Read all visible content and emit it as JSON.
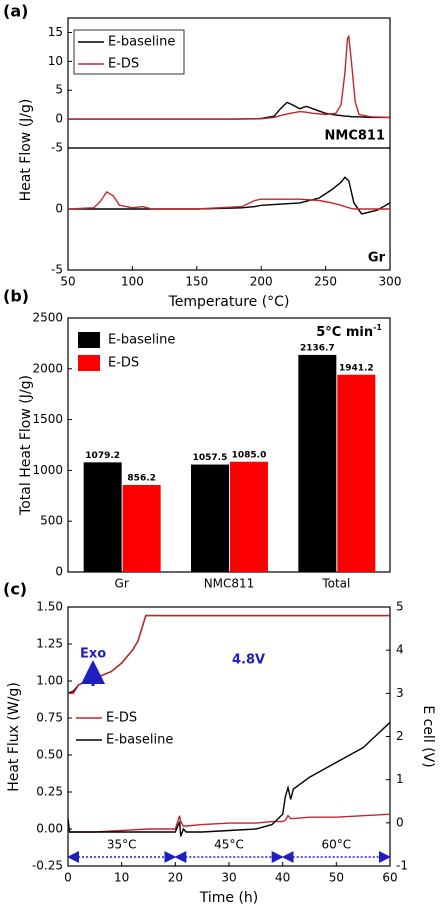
{
  "chart_data": [
    {
      "type": "line",
      "panel_label": "(a)",
      "ylabel": "Heat Flow (J/g)",
      "ylim": [
        -5,
        17.5
      ],
      "yticks": [
        -5,
        0,
        5,
        10,
        15
      ],
      "legend": "upper left",
      "annotations": [
        "NMC811"
      ],
      "x": [
        50,
        80,
        120,
        180,
        200,
        210,
        215,
        220,
        225,
        230,
        235,
        240,
        250,
        258,
        262,
        265,
        267,
        268,
        270,
        273,
        276,
        285,
        300
      ],
      "xlim": [
        50,
        300
      ],
      "series": [
        {
          "name": "E-baseline",
          "color": "#000000",
          "values": [
            0,
            0,
            0,
            0,
            0.1,
            0.5,
            1.8,
            2.9,
            2.4,
            1.8,
            2.2,
            1.8,
            1.0,
            0.7,
            0.6,
            0.5,
            0.5,
            0.5,
            0.4,
            0.4,
            0.4,
            0.3,
            0.3
          ]
        },
        {
          "name": "E-DS",
          "color": "#c0272d",
          "values": [
            0,
            0,
            0,
            0,
            0.05,
            0.3,
            0.6,
            0.9,
            1.1,
            1.3,
            1.2,
            1.0,
            0.8,
            1.0,
            2.5,
            8,
            14,
            14.3,
            10,
            3,
            0.8,
            0.4,
            0.3
          ]
        }
      ]
    },
    {
      "type": "line",
      "xlabel": "Temperature (°C)",
      "ylim": [
        -5,
        5
      ],
      "yticks": [
        -5,
        0
      ],
      "xlim": [
        50,
        300
      ],
      "xticks": [
        50,
        100,
        150,
        200,
        250,
        300
      ],
      "annotations": [
        "Gr"
      ],
      "x": [
        50,
        70,
        75,
        80,
        85,
        90,
        100,
        108,
        115,
        150,
        185,
        195,
        200,
        230,
        245,
        255,
        262,
        265,
        268,
        272,
        278,
        290,
        300
      ],
      "series": [
        {
          "color": "#000000",
          "values": [
            0,
            0,
            0,
            0,
            0,
            0,
            0,
            0,
            0,
            0,
            0.1,
            0.2,
            0.3,
            0.5,
            0.9,
            1.6,
            2.2,
            2.6,
            2.3,
            0.5,
            -0.4,
            -0.1,
            0.5
          ]
        },
        {
          "color": "#c0272d",
          "values": [
            0,
            0.1,
            0.6,
            1.4,
            1.1,
            0.3,
            0.1,
            0.2,
            0,
            0,
            0.2,
            0.7,
            0.8,
            0.8,
            0.7,
            0.5,
            0.3,
            0.2,
            0.1,
            0,
            0,
            0,
            0
          ]
        }
      ]
    },
    {
      "type": "bar",
      "panel_label": "(b)",
      "ylabel": "Total Heat Flow (J/g)",
      "ylim": [
        0,
        2500
      ],
      "yticks": [
        0,
        500,
        1000,
        1500,
        2000,
        2500
      ],
      "legend": "upper left",
      "annotations": [
        {
          "text": "5°C min",
          "superscript": "-1"
        }
      ],
      "categories": [
        "Gr",
        "NMC811",
        "Total"
      ],
      "series": [
        {
          "name": "E-baseline",
          "color": "#000000",
          "values": [
            1079.2,
            1057.5,
            2136.7
          ]
        },
        {
          "name": "E-DS",
          "color": "#ff0000",
          "values": [
            856.2,
            1085.0,
            1941.2
          ],
          "value_labels": [
            "856.2",
            "1085.0",
            "1941.2"
          ]
        }
      ]
    },
    {
      "type": "line",
      "panel_label": "(c)",
      "ylabel": "Heat Flux (W/g)",
      "y2label": "E cell (V)",
      "xlabel": "Time (h)",
      "xlim": [
        0,
        60
      ],
      "xticks": [
        0,
        10,
        20,
        30,
        40,
        50,
        60
      ],
      "ylim": [
        -0.25,
        1.5
      ],
      "yticks": [
        -0.25,
        {
          "value": 0,
          "label": "0.00"
        },
        0.25,
        {
          "value": 0.5,
          "label": "0.50"
        },
        0.75,
        {
          "value": 1,
          "label": "1.00"
        },
        1.25,
        {
          "value": 1.5,
          "label": "1.50"
        }
      ],
      "y2lim": [
        -1,
        5
      ],
      "y2ticks": [
        -1,
        0,
        1,
        2,
        3,
        4,
        5
      ],
      "legend": "center left",
      "annotations": [
        "Exo",
        "4.8V"
      ],
      "segments": [
        {
          "label": "35°C",
          "from": 0,
          "to": 20
        },
        {
          "label": "45°C",
          "from": 20,
          "to": 40
        },
        {
          "label": "60°C",
          "from": 40,
          "to": 60
        }
      ],
      "x": [
        0,
        0.3,
        1,
        5,
        10,
        15,
        20,
        20.8,
        21,
        21.5,
        22,
        25,
        30,
        35,
        38,
        40,
        40.5,
        41,
        41.5,
        42,
        45,
        50,
        55,
        60
      ],
      "series": [
        {
          "name": "E-DS",
          "color": "#c0272d",
          "values": [
            0.02,
            -0.02,
            -0.02,
            -0.02,
            -0.01,
            0,
            0,
            0.09,
            0.05,
            0.02,
            0.02,
            0.03,
            0.04,
            0.04,
            0.05,
            0.05,
            0.06,
            0.09,
            0.07,
            0.07,
            0.08,
            0.08,
            0.09,
            0.1
          ]
        },
        {
          "name": "E-baseline",
          "color": "#000000",
          "values": [
            0.07,
            -0.02,
            -0.02,
            -0.02,
            -0.02,
            -0.02,
            -0.02,
            0.05,
            -0.05,
            0,
            -0.02,
            -0.02,
            -0.01,
            0,
            0.03,
            0.1,
            0.22,
            0.28,
            0.2,
            0.27,
            0.35,
            0.45,
            0.55,
            0.72
          ]
        },
        {
          "color": "#000000",
          "axis": "y2",
          "x": [
            0,
            1,
            2,
            5,
            8,
            10,
            12,
            13,
            14,
            14.5,
            20,
            30,
            40,
            50,
            60
          ],
          "values": [
            3,
            3.05,
            3.2,
            3.35,
            3.5,
            3.7,
            4.0,
            4.2,
            4.6,
            4.8,
            4.8,
            4.8,
            4.8,
            4.8,
            4.8
          ]
        },
        {
          "color": "#c0272d",
          "axis": "y2",
          "x": [
            0,
            1,
            2,
            5,
            8,
            10,
            12,
            13,
            14,
            14.5,
            20,
            30,
            40,
            50,
            60
          ],
          "values": [
            3,
            3,
            3.2,
            3.35,
            3.5,
            3.7,
            4.0,
            4.2,
            4.6,
            4.8,
            4.8,
            4.8,
            4.8,
            4.8,
            4.8
          ]
        }
      ]
    }
  ]
}
